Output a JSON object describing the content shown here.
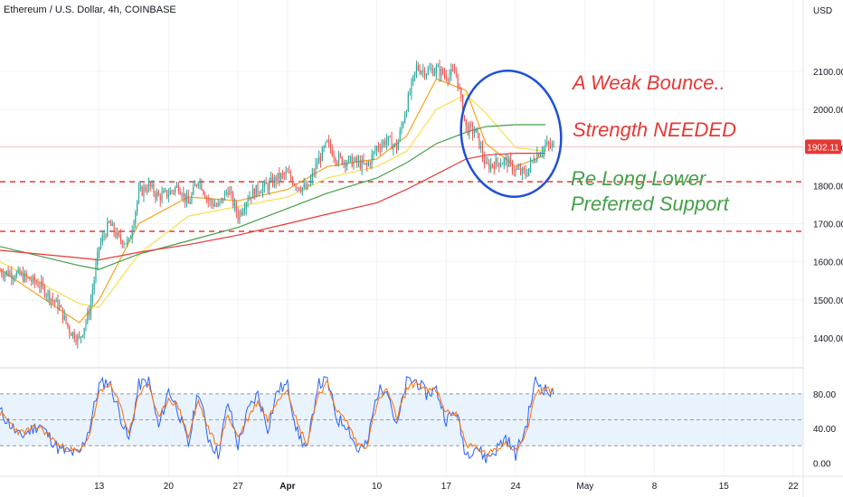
{
  "header": {
    "title": "Ethereum / U.S. Dollar, 4h, COINBASE",
    "currency": "USD"
  },
  "colors": {
    "up": "#26a69a",
    "down": "#ef5350",
    "ma_fast": "#f7a21b",
    "ma_mid": "#f5e050",
    "ma_green": "#43a047",
    "ma_red": "#e53935",
    "stoch_k": "#2962ff",
    "stoch_d": "#ff6d00",
    "note_red": "#e53935",
    "note_green": "#43a047",
    "circle": "#1e50d6",
    "support_line": "#e53935",
    "current_price_line": "#f8c7c7"
  },
  "chart_data": [
    {
      "type": "candlestick",
      "title": "Ethereum / U.S. Dollar, 4h, COINBASE",
      "y_axis_label": "USD",
      "y_ticks": [
        "2100.00",
        "2000.00",
        "1900.00",
        "1800.00",
        "1700.00",
        "1600.00",
        "1500.00",
        "1400.00"
      ],
      "ylim": [
        1350,
        2240
      ],
      "x_ticks": [
        "13",
        "20",
        "27",
        "Apr",
        "10",
        "17",
        "24",
        "May",
        "8",
        "15",
        "22"
      ],
      "x_tick_dates": [
        "2023-03-13",
        "2023-03-20",
        "2023-03-27",
        "2023-04-01",
        "2023-04-10",
        "2023-04-17",
        "2023-04-24",
        "2023-05-01",
        "2023-05-08",
        "2023-05-15",
        "2023-05-22"
      ],
      "xlim": [
        "2023-03-03",
        "2023-05-23"
      ],
      "last_date": "2023-04-27T20:00",
      "current_price": {
        "value": 1902.11,
        "label": "1902.11"
      },
      "price_path": [
        [
          "2023-03-03",
          1575
        ],
        [
          "2023-03-05",
          1565
        ],
        [
          "2023-03-07",
          1540
        ],
        [
          "2023-03-09",
          1480
        ],
        [
          "2023-03-10",
          1420
        ],
        [
          "2023-03-11",
          1395
        ],
        [
          "2023-03-12",
          1470
        ],
        [
          "2023-03-13",
          1640
        ],
        [
          "2023-03-14",
          1700
        ],
        [
          "2023-03-15",
          1660
        ],
        [
          "2023-03-16",
          1650
        ],
        [
          "2023-03-17",
          1780
        ],
        [
          "2023-03-18",
          1800
        ],
        [
          "2023-03-19",
          1770
        ],
        [
          "2023-03-20",
          1780
        ],
        [
          "2023-03-21",
          1800
        ],
        [
          "2023-03-22",
          1750
        ],
        [
          "2023-03-23",
          1820
        ],
        [
          "2023-03-24",
          1760
        ],
        [
          "2023-03-25",
          1745
        ],
        [
          "2023-03-26",
          1790
        ],
        [
          "2023-03-27",
          1720
        ],
        [
          "2023-03-28",
          1770
        ],
        [
          "2023-03-29",
          1790
        ],
        [
          "2023-03-30",
          1800
        ],
        [
          "2023-03-31",
          1820
        ],
        [
          "2023-04-01",
          1830
        ],
        [
          "2023-04-02",
          1800
        ],
        [
          "2023-04-03",
          1790
        ],
        [
          "2023-04-04",
          1860
        ],
        [
          "2023-04-05",
          1910
        ],
        [
          "2023-04-06",
          1870
        ],
        [
          "2023-04-07",
          1865
        ],
        [
          "2023-04-08",
          1860
        ],
        [
          "2023-04-09",
          1850
        ],
        [
          "2023-04-10",
          1900
        ],
        [
          "2023-04-11",
          1920
        ],
        [
          "2023-04-12",
          1900
        ],
        [
          "2023-04-13",
          2010
        ],
        [
          "2023-04-14",
          2110
        ],
        [
          "2023-04-15",
          2100
        ],
        [
          "2023-04-16",
          2105
        ],
        [
          "2023-04-17",
          2090
        ],
        [
          "2023-04-18",
          2095
        ],
        [
          "2023-04-19",
          1950
        ],
        [
          "2023-04-20",
          1940
        ],
        [
          "2023-04-21",
          1850
        ],
        [
          "2023-04-22",
          1860
        ],
        [
          "2023-04-23",
          1865
        ],
        [
          "2023-04-24",
          1840
        ],
        [
          "2023-04-25",
          1830
        ],
        [
          "2023-04-26",
          1880
        ],
        [
          "2023-04-27",
          1905
        ],
        [
          "2023-04-27T20:00",
          1902.11
        ]
      ],
      "moving_averages": [
        {
          "color_key": "ma_fast",
          "points": [
            [
              "2023-03-03",
              1580
            ],
            [
              "2023-03-11",
              1440
            ],
            [
              "2023-03-13",
              1500
            ],
            [
              "2023-03-17",
              1700
            ],
            [
              "2023-03-22",
              1770
            ],
            [
              "2023-03-27",
              1760
            ],
            [
              "2023-04-01",
              1790
            ],
            [
              "2023-04-05",
              1850
            ],
            [
              "2023-04-10",
              1870
            ],
            [
              "2023-04-13",
              1930
            ],
            [
              "2023-04-16",
              2080
            ],
            [
              "2023-04-19",
              2050
            ],
            [
              "2023-04-21",
              1910
            ],
            [
              "2023-04-24",
              1850
            ],
            [
              "2023-04-27",
              1880
            ]
          ]
        },
        {
          "color_key": "ma_mid",
          "points": [
            [
              "2023-03-03",
              1600
            ],
            [
              "2023-03-11",
              1490
            ],
            [
              "2023-03-13",
              1480
            ],
            [
              "2023-03-17",
              1620
            ],
            [
              "2023-03-22",
              1720
            ],
            [
              "2023-03-27",
              1745
            ],
            [
              "2023-04-01",
              1770
            ],
            [
              "2023-04-05",
              1820
            ],
            [
              "2023-04-10",
              1850
            ],
            [
              "2023-04-13",
              1890
            ],
            [
              "2023-04-16",
              2000
            ],
            [
              "2023-04-19",
              2040
            ],
            [
              "2023-04-21",
              1990
            ],
            [
              "2023-04-24",
              1900
            ],
            [
              "2023-04-27",
              1890
            ]
          ]
        },
        {
          "color_key": "ma_green",
          "points": [
            [
              "2023-03-03",
              1640
            ],
            [
              "2023-03-11",
              1590
            ],
            [
              "2023-03-13",
              1580
            ],
            [
              "2023-03-17",
              1620
            ],
            [
              "2023-03-22",
              1655
            ],
            [
              "2023-03-27",
              1690
            ],
            [
              "2023-04-01",
              1740
            ],
            [
              "2023-04-05",
              1780
            ],
            [
              "2023-04-10",
              1820
            ],
            [
              "2023-04-13",
              1860
            ],
            [
              "2023-04-16",
              1910
            ],
            [
              "2023-04-19",
              1940
            ],
            [
              "2023-04-21",
              1955
            ],
            [
              "2023-04-24",
              1960
            ],
            [
              "2023-04-27",
              1960
            ]
          ]
        },
        {
          "color_key": "ma_red",
          "points": [
            [
              "2023-03-03",
              1630
            ],
            [
              "2023-03-11",
              1610
            ],
            [
              "2023-03-13",
              1605
            ],
            [
              "2023-03-17",
              1625
            ],
            [
              "2023-03-22",
              1645
            ],
            [
              "2023-03-27",
              1670
            ],
            [
              "2023-04-01",
              1700
            ],
            [
              "2023-04-05",
              1725
            ],
            [
              "2023-04-10",
              1755
            ],
            [
              "2023-04-13",
              1790
            ],
            [
              "2023-04-16",
              1830
            ],
            [
              "2023-04-19",
              1870
            ],
            [
              "2023-04-21",
              1880
            ],
            [
              "2023-04-24",
              1885
            ],
            [
              "2023-04-27",
              1885
            ]
          ]
        }
      ],
      "support_levels": [
        1810,
        1680
      ],
      "annotations": [
        {
          "text": "A Weak Bounce..",
          "color_key": "note_red"
        },
        {
          "text": "Strength NEEDED",
          "color_key": "note_red"
        },
        {
          "text": "Re Long Lower",
          "color_key": "note_green"
        },
        {
          "text": "Preferred Support",
          "color_key": "note_green"
        }
      ]
    },
    {
      "type": "line",
      "name": "stochastic_oscillator",
      "y_ticks": [
        "80.00",
        "40.00",
        "0.00"
      ],
      "ylim": [
        -10,
        105
      ],
      "band": [
        20,
        80
      ],
      "midline": 50,
      "k_path": [
        [
          "2023-03-03",
          60
        ],
        [
          "2023-03-05",
          30
        ],
        [
          "2023-03-07",
          45
        ],
        [
          "2023-03-09",
          15
        ],
        [
          "2023-03-11",
          10
        ],
        [
          "2023-03-12",
          40
        ],
        [
          "2023-03-13",
          90
        ],
        [
          "2023-03-14",
          95
        ],
        [
          "2023-03-15",
          60
        ],
        [
          "2023-03-16",
          25
        ],
        [
          "2023-03-17",
          90
        ],
        [
          "2023-03-18",
          95
        ],
        [
          "2023-03-19",
          40
        ],
        [
          "2023-03-20",
          85
        ],
        [
          "2023-03-21",
          60
        ],
        [
          "2023-03-22",
          20
        ],
        [
          "2023-03-23",
          85
        ],
        [
          "2023-03-24",
          30
        ],
        [
          "2023-03-25",
          10
        ],
        [
          "2023-03-26",
          70
        ],
        [
          "2023-03-27",
          20
        ],
        [
          "2023-03-28",
          60
        ],
        [
          "2023-03-29",
          80
        ],
        [
          "2023-03-30",
          40
        ],
        [
          "2023-03-31",
          85
        ],
        [
          "2023-04-01",
          90
        ],
        [
          "2023-04-02",
          35
        ],
        [
          "2023-04-03",
          15
        ],
        [
          "2023-04-04",
          90
        ],
        [
          "2023-04-05",
          95
        ],
        [
          "2023-04-06",
          50
        ],
        [
          "2023-04-07",
          45
        ],
        [
          "2023-04-08",
          15
        ],
        [
          "2023-04-09",
          20
        ],
        [
          "2023-04-10",
          80
        ],
        [
          "2023-04-11",
          90
        ],
        [
          "2023-04-12",
          40
        ],
        [
          "2023-04-13",
          95
        ],
        [
          "2023-04-14",
          95
        ],
        [
          "2023-04-15",
          80
        ],
        [
          "2023-04-16",
          85
        ],
        [
          "2023-04-17",
          50
        ],
        [
          "2023-04-18",
          60
        ],
        [
          "2023-04-19",
          10
        ],
        [
          "2023-04-20",
          20
        ],
        [
          "2023-04-21",
          5
        ],
        [
          "2023-04-22",
          15
        ],
        [
          "2023-04-23",
          30
        ],
        [
          "2023-04-24",
          10
        ],
        [
          "2023-04-25",
          40
        ],
        [
          "2023-04-26",
          95
        ],
        [
          "2023-04-27",
          85
        ],
        [
          "2023-04-27T20:00",
          78
        ]
      ],
      "d_path": [
        [
          "2023-03-03",
          58
        ],
        [
          "2023-03-05",
          35
        ],
        [
          "2023-03-07",
          42
        ],
        [
          "2023-03-09",
          20
        ],
        [
          "2023-03-11",
          12
        ],
        [
          "2023-03-12",
          32
        ],
        [
          "2023-03-13",
          80
        ],
        [
          "2023-03-14",
          92
        ],
        [
          "2023-03-15",
          70
        ],
        [
          "2023-03-16",
          35
        ],
        [
          "2023-03-17",
          80
        ],
        [
          "2023-03-18",
          92
        ],
        [
          "2023-03-19",
          50
        ],
        [
          "2023-03-20",
          75
        ],
        [
          "2023-03-21",
          65
        ],
        [
          "2023-03-22",
          30
        ],
        [
          "2023-03-23",
          72
        ],
        [
          "2023-03-24",
          40
        ],
        [
          "2023-03-25",
          18
        ],
        [
          "2023-03-26",
          55
        ],
        [
          "2023-03-27",
          30
        ],
        [
          "2023-03-28",
          52
        ],
        [
          "2023-03-29",
          72
        ],
        [
          "2023-03-30",
          50
        ],
        [
          "2023-03-31",
          75
        ],
        [
          "2023-04-01",
          86
        ],
        [
          "2023-04-02",
          45
        ],
        [
          "2023-04-03",
          22
        ],
        [
          "2023-04-04",
          78
        ],
        [
          "2023-04-05",
          92
        ],
        [
          "2023-04-06",
          60
        ],
        [
          "2023-04-07",
          48
        ],
        [
          "2023-04-08",
          22
        ],
        [
          "2023-04-09",
          20
        ],
        [
          "2023-04-10",
          68
        ],
        [
          "2023-04-11",
          86
        ],
        [
          "2023-04-12",
          52
        ],
        [
          "2023-04-13",
          85
        ],
        [
          "2023-04-14",
          94
        ],
        [
          "2023-04-15",
          84
        ],
        [
          "2023-04-16",
          84
        ],
        [
          "2023-04-17",
          58
        ],
        [
          "2023-04-18",
          58
        ],
        [
          "2023-04-19",
          22
        ],
        [
          "2023-04-20",
          18
        ],
        [
          "2023-04-21",
          10
        ],
        [
          "2023-04-22",
          14
        ],
        [
          "2023-04-23",
          25
        ],
        [
          "2023-04-24",
          15
        ],
        [
          "2023-04-25",
          32
        ],
        [
          "2023-04-26",
          80
        ],
        [
          "2023-04-27",
          86
        ],
        [
          "2023-04-27T20:00",
          82
        ]
      ]
    }
  ]
}
